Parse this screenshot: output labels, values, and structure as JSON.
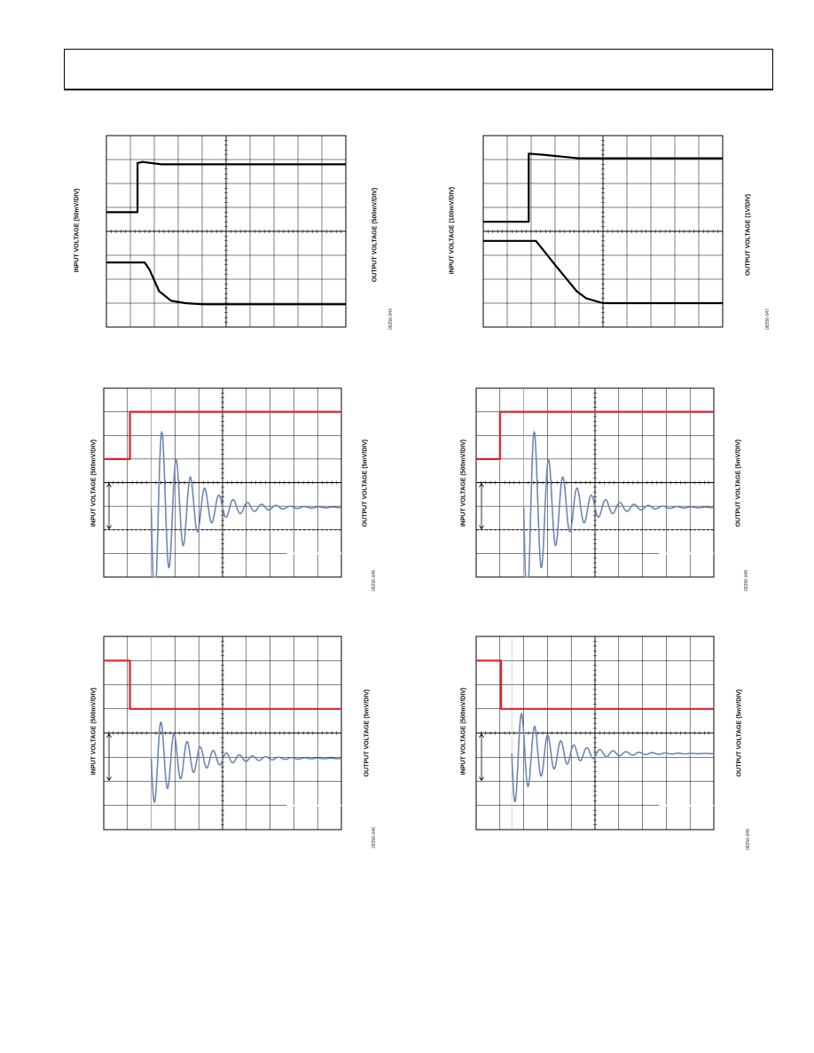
{
  "chart_data": [
    {
      "type": "line",
      "id": "p1",
      "ylabel_left": "INPUT VOLTAGE (50mV/DIV)",
      "ylabel_right": "OUTPUT VOLTAGE (500mV/DIV)",
      "figure_number": "08256-044",
      "series": [
        {
          "color": "#000000",
          "x": [
            0,
            1.3,
            1.3,
            1.5,
            2.3,
            10
          ],
          "y": [
            3.2,
            3.2,
            1.15,
            1.1,
            1.2,
            1.2
          ]
        },
        {
          "color": "#000000",
          "x": [
            0,
            1.6,
            1.8,
            2.2,
            2.7,
            3.3,
            4.0,
            10
          ],
          "y": [
            5.3,
            5.3,
            5.6,
            6.5,
            6.9,
            7.0,
            7.05,
            7.05
          ]
        }
      ]
    },
    {
      "type": "line",
      "id": "p2",
      "ylabel_left": "INPUT VOLTAGE (100mV/DIV)",
      "ylabel_right": "OUTPUT VOLTAGE (1V/DIV)",
      "figure_number": "08256-047",
      "series": [
        {
          "color": "#000000",
          "x": [
            0,
            1.9,
            1.9,
            2.5,
            4.0,
            10
          ],
          "y": [
            3.6,
            3.6,
            0.75,
            0.8,
            0.95,
            0.95
          ]
        },
        {
          "color": "#000000",
          "x": [
            0,
            2.2,
            3.0,
            3.9,
            4.3,
            5.0,
            10
          ],
          "y": [
            4.4,
            4.4,
            5.4,
            6.5,
            6.8,
            7.0,
            7.0
          ]
        }
      ]
    },
    {
      "type": "line",
      "id": "p3",
      "ylabel_left": "INPUT VOLTAGE (500mV/DIV)",
      "ylabel_right": "OUTPUT VOLTAGE (5mV/DIV)",
      "figure_number": "08256-045",
      "input": {
        "color": "#d9252e",
        "x": [
          0,
          1.1,
          1.1,
          10
        ],
        "y": [
          3.0,
          3.0,
          1.0,
          1.0
        ]
      },
      "output": {
        "color": "#6f87b3",
        "start": 2.0,
        "settle": 5.05,
        "amp": 4.5,
        "decay": 0.55,
        "period": 0.6
      }
    },
    {
      "type": "line",
      "id": "p4",
      "ylabel_left": "INPUT VOLTAGE (500mV/DIV)",
      "ylabel_right": "OUTPUT VOLTAGE (5mV/DIV)",
      "figure_number": "08256-048",
      "input": {
        "color": "#d9252e",
        "x": [
          0,
          1.0,
          1.0,
          10
        ],
        "y": [
          3.0,
          3.0,
          1.0,
          1.0
        ]
      },
      "output": {
        "color": "#6f87b3",
        "start": 2.0,
        "settle": 5.05,
        "amp": 4.5,
        "decay": 0.55,
        "period": 0.6
      }
    },
    {
      "type": "line",
      "id": "p5",
      "ylabel_left": "INPUT VOLTAGE (500mV/DIV)",
      "ylabel_right": "OUTPUT VOLTAGE (5mV/DIV)",
      "figure_number": "08256-046",
      "input": {
        "color": "#d9252e",
        "x": [
          0,
          1.1,
          1.1,
          10
        ],
        "y": [
          1.0,
          1.0,
          3.0,
          3.0
        ]
      },
      "output": {
        "color": "#6f87b3",
        "start": 2.0,
        "settle": 5.05,
        "amp": 2.0,
        "decay": 0.6,
        "period": 0.55
      }
    },
    {
      "type": "line",
      "id": "p6",
      "ylabel_left": "INPUT VOLTAGE (500mV/DIV)",
      "ylabel_right": "OUTPUT VOLTAGE (5mV/DIV)",
      "figure_number": "08256-049",
      "input": {
        "color": "#d9252e",
        "x": [
          0,
          1.05,
          1.05,
          10
        ],
        "y": [
          1.0,
          1.0,
          3.0,
          3.0
        ]
      },
      "output": {
        "color": "#6f87b3",
        "start": 1.5,
        "settle": 4.85,
        "amp": 2.2,
        "decay": 0.6,
        "period": 0.55
      }
    }
  ]
}
